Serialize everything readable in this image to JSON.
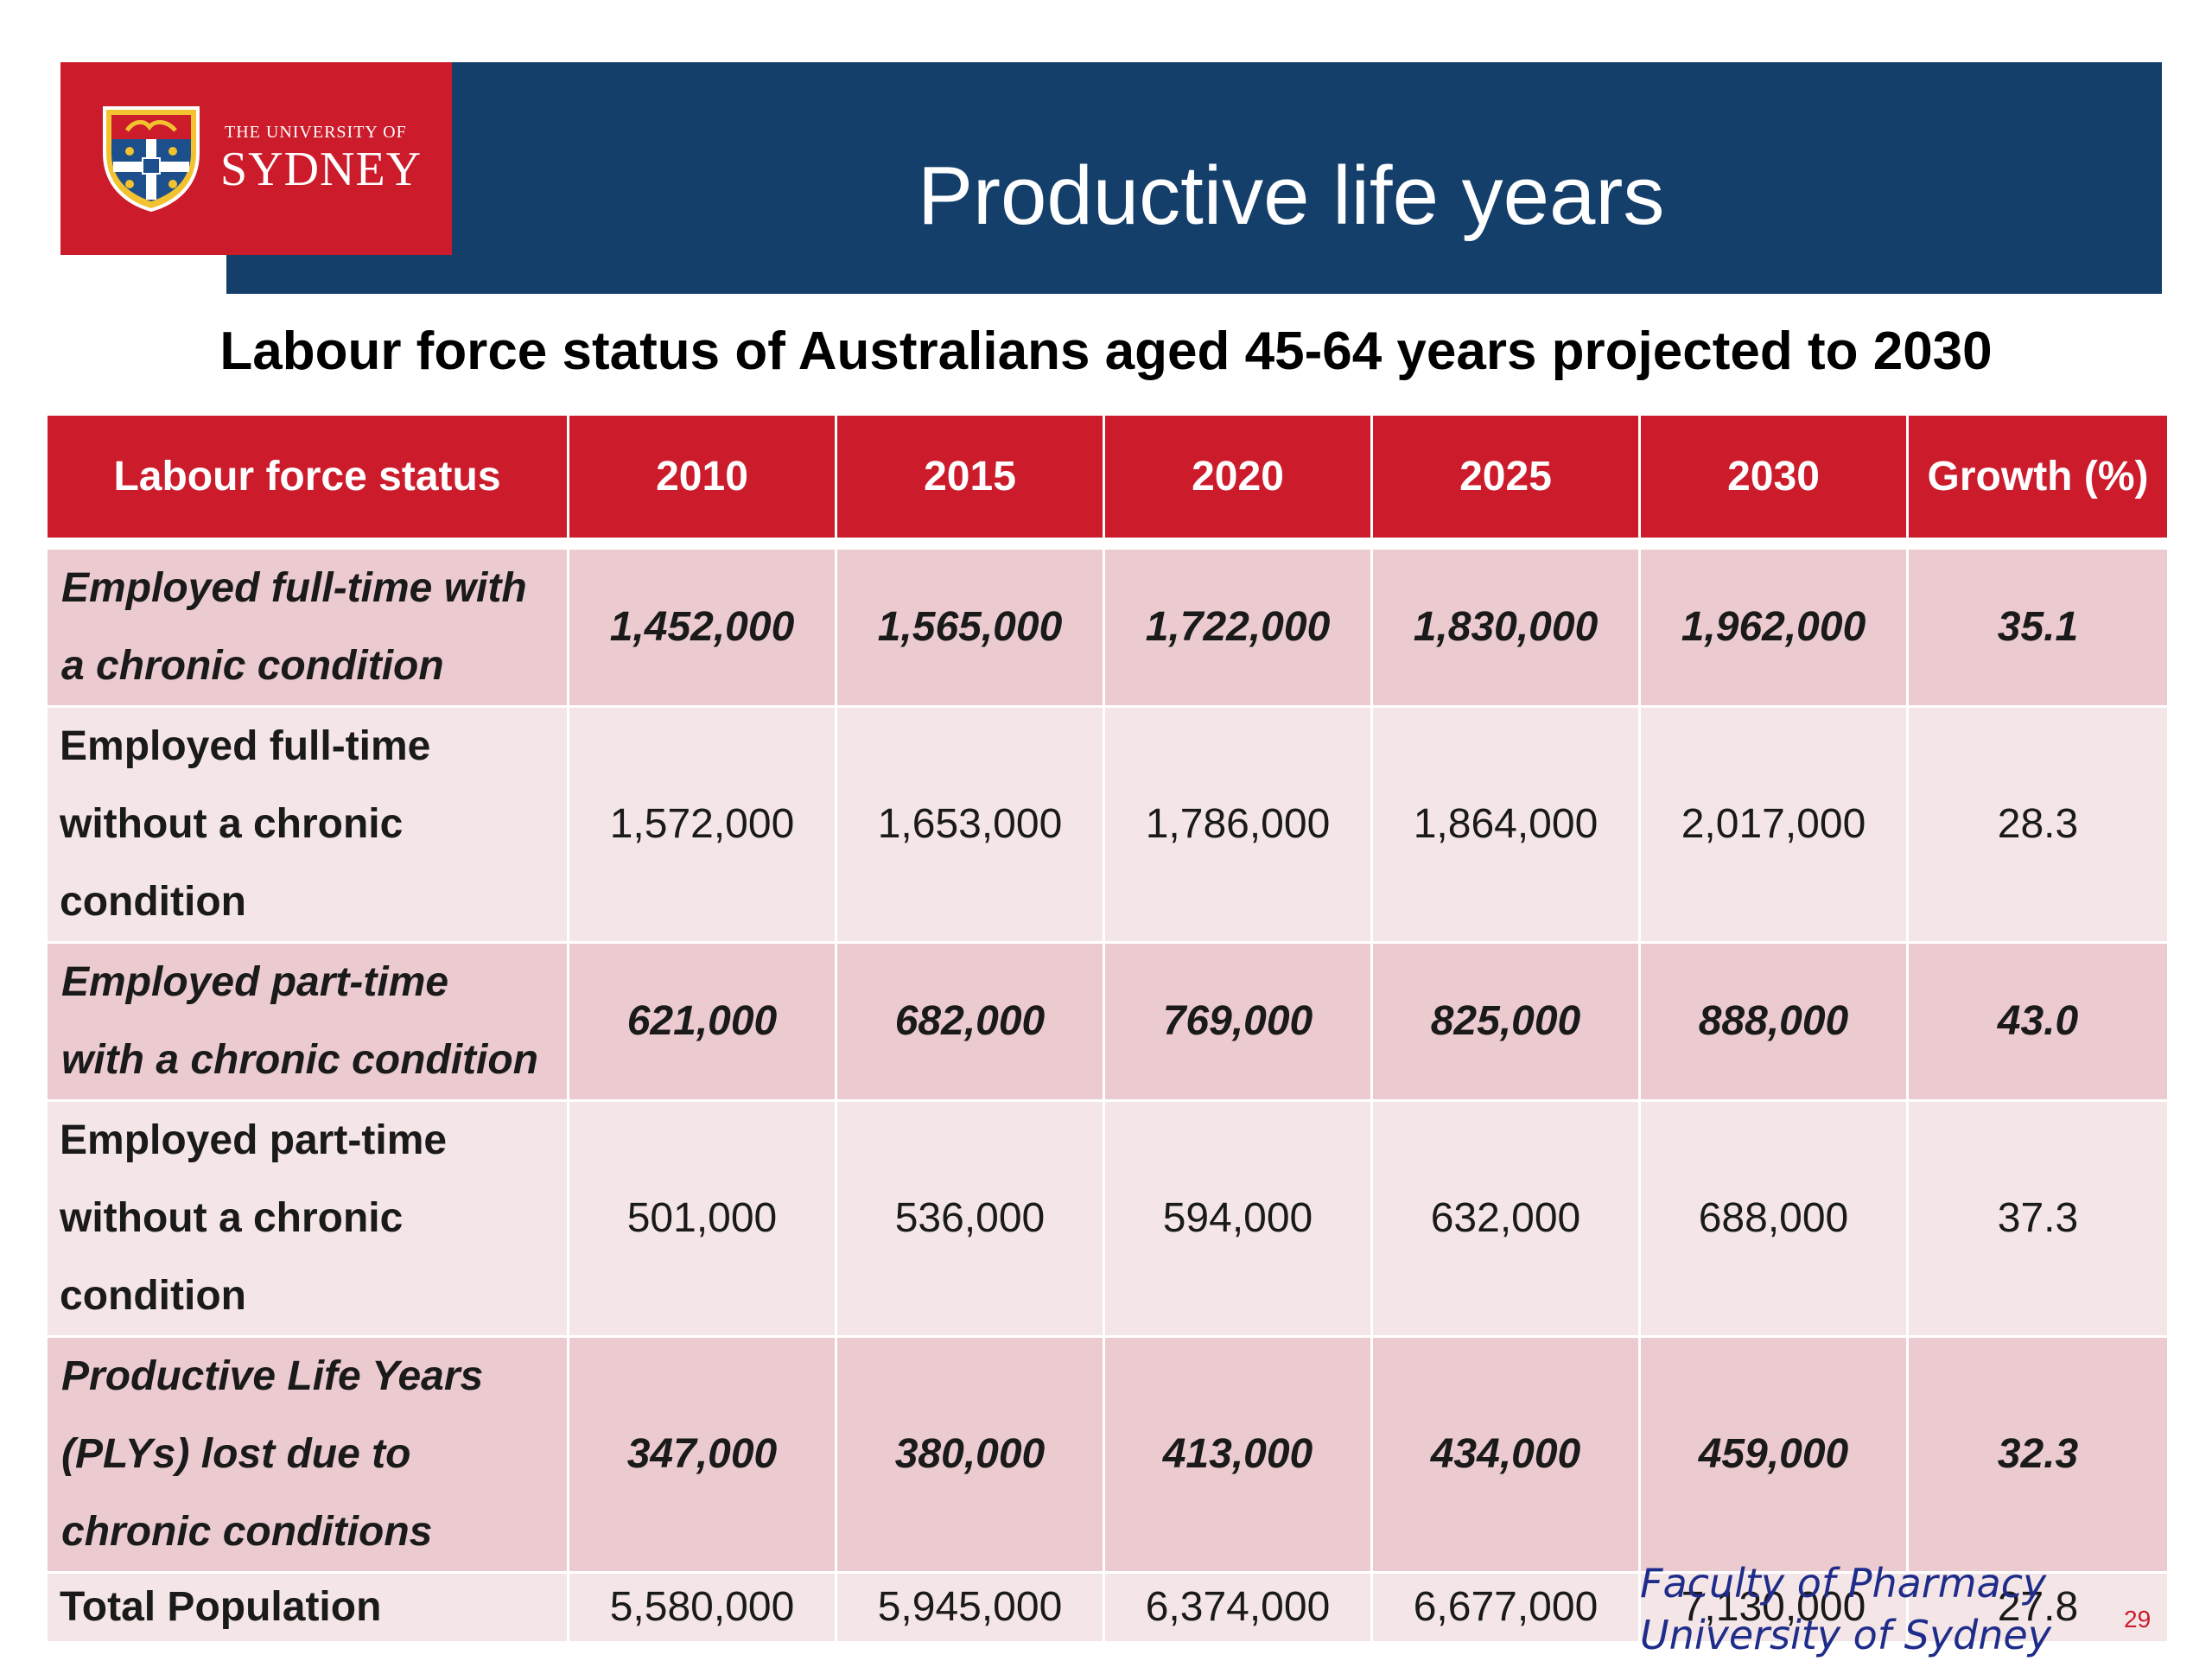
{
  "slide": {
    "title": "Productive life years",
    "subtitle": "Labour force status of Australians aged 45-64 years projected to 2030"
  },
  "logo": {
    "small": "THE UNIVERSITY OF",
    "big": "SYDNEY"
  },
  "colors": {
    "red": "#cc1b2b",
    "navy": "#143f6b",
    "pink_row": "#ebcbcf",
    "light_row": "#f4e5e7",
    "footer_blue": "#1f2d8a"
  },
  "table": {
    "headers": [
      "Labour force status",
      "2010",
      "2015",
      "2020",
      "2025",
      "2030",
      "Growth (%)"
    ],
    "rows": [
      {
        "label_lines": [
          "Employed full-time with",
          "a chronic condition"
        ],
        "values": [
          "1,452,000",
          "1,565,000",
          "1,722,000",
          "1,830,000",
          "1,962,000",
          "35.1"
        ]
      },
      {
        "label_lines": [
          "Employed full-time",
          "without a chronic",
          "condition"
        ],
        "values": [
          "1,572,000",
          "1,653,000",
          "1,786,000",
          "1,864,000",
          "2,017,000",
          "28.3"
        ]
      },
      {
        "label_lines": [
          "Employed part-time",
          "with a chronic condition"
        ],
        "values": [
          "621,000",
          "682,000",
          "769,000",
          "825,000",
          "888,000",
          "43.0"
        ]
      },
      {
        "label_lines": [
          "Employed part-time",
          "without a chronic",
          "condition"
        ],
        "values": [
          "501,000",
          "536,000",
          "594,000",
          "632,000",
          "688,000",
          "37.3"
        ]
      },
      {
        "label_lines": [
          "Productive Life Years",
          "(PLYs) lost due to",
          "chronic conditions"
        ],
        "values": [
          "347,000",
          "380,000",
          "413,000",
          "434,000",
          "459,000",
          "32.3"
        ]
      },
      {
        "label_lines": [
          "Total Population"
        ],
        "values": [
          "5,580,000",
          "5,945,000",
          "6,374,000",
          "6,677,000",
          "7,130,000",
          "27.8"
        ]
      }
    ]
  },
  "footer": {
    "line1": "Faculty of Pharmacy",
    "line2": "University of Sydney",
    "page": "29"
  }
}
